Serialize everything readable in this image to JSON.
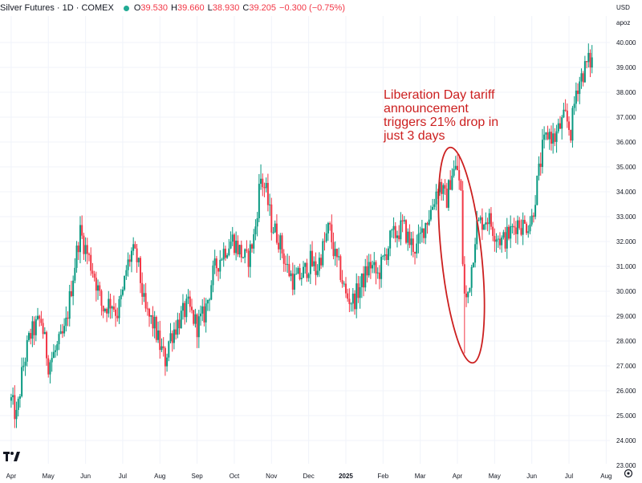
{
  "header": {
    "symbol": "Silver Futures · 1D · COMEX",
    "open_label": "O",
    "open": "39.530",
    "high_label": "H",
    "high": "39.660",
    "low_label": "L",
    "low": "38.930",
    "close_label": "C",
    "close": "39.205",
    "change": "−0.300 (−0.75%)"
  },
  "axis": {
    "currency": "USD",
    "scale_mode": "apoz"
  },
  "annotation": "Liberation Day tariff\nannouncement\ntriggers 21% drop in\njust 3 days",
  "colors": {
    "up": "#089981",
    "down": "#f23645",
    "annotation": "#cc1f1f",
    "grid": "#f0f3fa",
    "axis_text": "#131722"
  },
  "chart_data": {
    "type": "candlestick",
    "title": "",
    "y_ticks": [
      23.0,
      24.0,
      25.0,
      26.0,
      27.0,
      28.0,
      29.0,
      30.0,
      31.0,
      32.0,
      33.0,
      34.0,
      35.0,
      36.0,
      37.0,
      38.0,
      39.0,
      40.0
    ],
    "ylim": [
      23.0,
      40.5
    ],
    "x_ticks": [
      "Apr",
      "May",
      "Jun",
      "Jul",
      "Aug",
      "Sep",
      "Oct",
      "Nov",
      "Dec",
      "2025",
      "Feb",
      "Mar",
      "Apr",
      "May",
      "Jun",
      "Jul",
      "Aug"
    ],
    "x_tick_months": [
      0,
      1,
      2,
      3,
      4,
      5,
      6,
      7,
      8,
      9,
      10,
      11,
      12,
      13,
      14,
      15,
      16
    ],
    "xlim_months": [
      -0.3,
      16.1
    ],
    "grid": true,
    "price_path": [
      [
        0.0,
        25.6
      ],
      [
        0.15,
        24.9
      ],
      [
        0.3,
        26.8
      ],
      [
        0.5,
        28.2
      ],
      [
        0.8,
        28.9
      ],
      [
        1.0,
        27.1
      ],
      [
        1.2,
        27.6
      ],
      [
        1.45,
        28.4
      ],
      [
        1.65,
        30.5
      ],
      [
        1.85,
        32.4
      ],
      [
        2.05,
        31.5
      ],
      [
        2.25,
        30.6
      ],
      [
        2.45,
        29.3
      ],
      [
        2.7,
        29.6
      ],
      [
        2.85,
        29.1
      ],
      [
        3.0,
        29.9
      ],
      [
        3.1,
        30.9
      ],
      [
        3.25,
        31.6
      ],
      [
        3.4,
        31.2
      ],
      [
        3.6,
        29.2
      ],
      [
        3.85,
        28.6
      ],
      [
        4.0,
        27.8
      ],
      [
        4.15,
        27.2
      ],
      [
        4.25,
        28.1
      ],
      [
        4.5,
        28.8
      ],
      [
        4.75,
        29.4
      ],
      [
        5.0,
        28.6
      ],
      [
        5.2,
        29.1
      ],
      [
        5.45,
        30.8
      ],
      [
        5.7,
        31.6
      ],
      [
        5.95,
        32.1
      ],
      [
        6.15,
        31.6
      ],
      [
        6.35,
        31.2
      ],
      [
        6.55,
        32.3
      ],
      [
        6.7,
        34.6
      ],
      [
        6.85,
        34.0
      ],
      [
        7.0,
        32.7
      ],
      [
        7.2,
        32.1
      ],
      [
        7.4,
        31.0
      ],
      [
        7.6,
        30.4
      ],
      [
        7.85,
        30.7
      ],
      [
        8.05,
        31.2
      ],
      [
        8.2,
        30.8
      ],
      [
        8.4,
        31.8
      ],
      [
        8.55,
        32.6
      ],
      [
        8.7,
        31.4
      ],
      [
        8.85,
        30.8
      ],
      [
        9.0,
        29.8
      ],
      [
        9.2,
        29.6
      ],
      [
        9.45,
        30.4
      ],
      [
        9.65,
        31.1
      ],
      [
        9.85,
        30.6
      ],
      [
        10.0,
        31.2
      ],
      [
        10.2,
        32.1
      ],
      [
        10.4,
        32.4
      ],
      [
        10.55,
        32.6
      ],
      [
        10.7,
        32.0
      ],
      [
        10.9,
        31.7
      ],
      [
        11.1,
        32.6
      ],
      [
        11.3,
        33.3
      ],
      [
        11.5,
        34.4
      ],
      [
        11.7,
        33.6
      ],
      [
        11.85,
        34.8
      ],
      [
        12.0,
        34.9
      ],
      [
        12.1,
        33.8
      ],
      [
        12.16,
        30.2
      ],
      [
        12.22,
        29.5
      ],
      [
        12.28,
        29.9
      ],
      [
        12.4,
        31.2
      ],
      [
        12.5,
        32.6
      ],
      [
        12.65,
        32.8
      ],
      [
        12.8,
        33.0
      ],
      [
        13.0,
        32.4
      ],
      [
        13.2,
        32.0
      ],
      [
        13.4,
        32.3
      ],
      [
        13.6,
        32.8
      ],
      [
        13.8,
        32.6
      ],
      [
        14.0,
        32.9
      ],
      [
        14.15,
        34.4
      ],
      [
        14.3,
        35.8
      ],
      [
        14.45,
        36.4
      ],
      [
        14.6,
        36.1
      ],
      [
        14.75,
        36.6
      ],
      [
        14.9,
        37.0
      ],
      [
        15.05,
        36.4
      ],
      [
        15.2,
        38.2
      ],
      [
        15.35,
        38.7
      ],
      [
        15.5,
        39.2
      ],
      [
        15.62,
        39.25
      ]
    ],
    "extremes": [
      [
        0.12,
        24.5
      ],
      [
        4.15,
        26.6
      ],
      [
        6.72,
        35.1
      ],
      [
        12.02,
        35.5
      ],
      [
        12.2,
        27.5
      ],
      [
        15.6,
        39.9
      ]
    ]
  }
}
